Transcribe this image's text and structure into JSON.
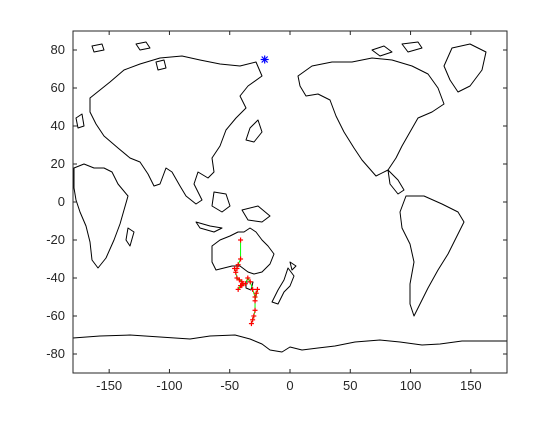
{
  "chart_data": {
    "type": "scatter",
    "title": "",
    "xlabel": "",
    "ylabel": "",
    "xlim": [
      -180,
      180
    ],
    "ylim": [
      -90,
      90
    ],
    "xticks": [
      -150,
      -100,
      -50,
      0,
      50,
      100,
      150
    ],
    "xtick_labels": [
      "-150",
      "-100",
      "-50",
      "0",
      "50",
      "100",
      "150"
    ],
    "yticks": [
      -80,
      -60,
      -40,
      -20,
      0,
      20,
      40,
      60,
      80
    ],
    "ytick_labels": [
      "-80",
      "-60",
      "-40",
      "-20",
      "0",
      "20",
      "40",
      "60",
      "80"
    ],
    "grid": false,
    "legend": "none",
    "map_projection": "Pacific-centred world coastline (longitude shifted by 180 degrees)",
    "colors": {
      "coastline": "#000000",
      "track_line": "#00ff00",
      "track_points": "#ff0000",
      "marker": "#0000ff"
    },
    "series": [
      {
        "marker_style": "red + markers joined by a green line",
        "x": [
          -41,
          -41,
          -43,
          -44,
          -46,
          -45,
          -44,
          -42,
          -40,
          -39,
          -41,
          -43,
          -40,
          -37,
          -35,
          -33,
          -31,
          -29,
          -28,
          -27,
          -29,
          -29,
          -30,
          -31,
          -32
        ],
        "y": [
          -20,
          -30,
          -33,
          -35,
          -35,
          -37,
          -40,
          -41,
          -42,
          -43,
          -44,
          -46,
          -44,
          -43,
          -40,
          -42,
          -46,
          -50,
          -48,
          -46,
          -52,
          -57,
          -60,
          -62,
          -64
        ]
      },
      {
        "marker_style": "blue asterisk",
        "x": [
          -21
        ],
        "y": [
          75
        ]
      }
    ]
  }
}
